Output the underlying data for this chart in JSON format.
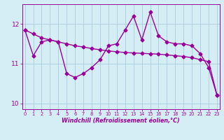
{
  "line1_x": [
    0,
    1,
    2,
    3,
    4,
    5,
    6,
    7,
    8,
    9,
    10,
    11,
    12,
    13,
    14,
    15,
    16,
    17,
    18,
    19,
    20,
    21,
    22,
    23
  ],
  "line1_y": [
    11.85,
    11.2,
    11.55,
    11.6,
    11.55,
    10.75,
    10.65,
    10.75,
    10.9,
    11.1,
    11.45,
    11.5,
    11.85,
    12.2,
    11.6,
    12.3,
    11.7,
    11.55,
    11.5,
    11.5,
    11.45,
    11.25,
    10.9,
    10.2
  ],
  "line2_x": [
    0,
    1,
    2,
    3,
    4,
    5,
    6,
    7,
    8,
    9,
    10,
    11,
    12,
    13,
    14,
    15,
    16,
    17,
    18,
    19,
    20,
    21,
    22,
    23
  ],
  "line2_y": [
    11.85,
    11.75,
    11.65,
    11.6,
    11.55,
    11.5,
    11.45,
    11.42,
    11.38,
    11.35,
    11.32,
    11.3,
    11.28,
    11.27,
    11.26,
    11.25,
    11.24,
    11.22,
    11.2,
    11.18,
    11.15,
    11.1,
    11.05,
    10.2
  ],
  "line_color": "#990099",
  "bg_color": "#d5eef5",
  "grid_color": "#aaccdd",
  "xlabel": "Windchill (Refroidissement éolien,°C)",
  "yticks": [
    10,
    11,
    12
  ],
  "xticks": [
    0,
    1,
    2,
    3,
    4,
    5,
    6,
    7,
    8,
    9,
    10,
    11,
    12,
    13,
    14,
    15,
    16,
    17,
    18,
    19,
    20,
    21,
    22,
    23
  ],
  "ylim": [
    9.85,
    12.5
  ],
  "xlim": [
    -0.3,
    23.3
  ],
  "markersize": 2.5,
  "linewidth": 1.0
}
